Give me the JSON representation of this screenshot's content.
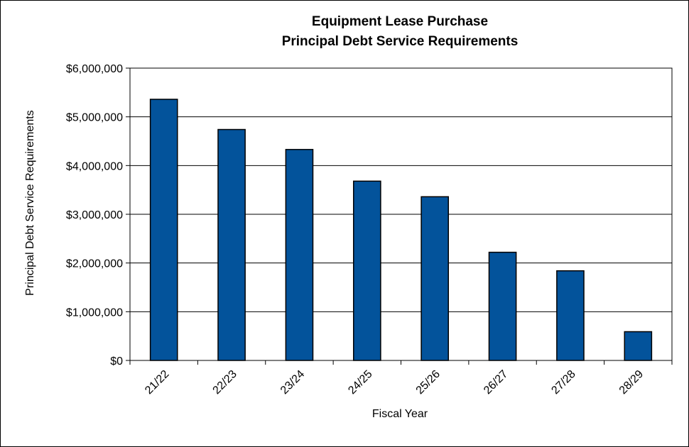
{
  "chart_data": {
    "type": "bar",
    "title": "Equipment Lease Purchase",
    "subtitle": "Principal Debt Service Requirements",
    "xlabel": "Fiscal Year",
    "ylabel": "Principal Debt Service Requirements",
    "categories": [
      "21/22",
      "22/23",
      "23/24",
      "24/25",
      "25/26",
      "26/27",
      "27/28",
      "28/29"
    ],
    "values": [
      5360000,
      4740000,
      4330000,
      3680000,
      3360000,
      2220000,
      1840000,
      590000
    ],
    "ylim": [
      0,
      6000000
    ],
    "y_ticks": [
      {
        "value": 0,
        "label": "$0"
      },
      {
        "value": 1000000,
        "label": "$1,000,000"
      },
      {
        "value": 2000000,
        "label": "$2,000,000"
      },
      {
        "value": 3000000,
        "label": "$3,000,000"
      },
      {
        "value": 4000000,
        "label": "$4,000,000"
      },
      {
        "value": 5000000,
        "label": "$5,000,000"
      },
      {
        "value": 6000000,
        "label": "$6,000,000"
      }
    ],
    "grid": true,
    "legend": "none",
    "bar_color": "#03539B",
    "bar_edge_color": "#000000"
  }
}
